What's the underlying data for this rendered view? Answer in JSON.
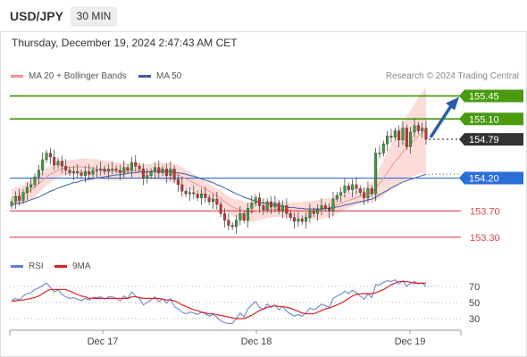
{
  "header": {
    "symbol": "USD/JPY",
    "interval": "30 MIN"
  },
  "datetime": "Thursday, December 19, 2024 2:47:43 AM CET",
  "legend": {
    "ma20": "MA 20 + Bollinger Bands",
    "ma50": "MA 50",
    "ma20_color": "#f4938f",
    "ma50_color": "#3a5fa8",
    "copyright": "Research © 2024 Trading Central"
  },
  "rsi_legend": {
    "rsi": "RSI",
    "ma9": "9MA",
    "rsi_color": "#5a7fd0",
    "ma9_color": "#e02020"
  },
  "levels": [
    {
      "value": 155.45,
      "label": "155.45",
      "kind": "target"
    },
    {
      "value": 155.1,
      "label": "155.10",
      "kind": "target"
    },
    {
      "value": 154.79,
      "label": "154.79",
      "kind": "current"
    },
    {
      "value": 154.2,
      "label": "154.20",
      "kind": "pivot"
    },
    {
      "value": 153.7,
      "label": "153.70",
      "kind": "support"
    },
    {
      "value": 153.3,
      "label": "153.30",
      "kind": "support"
    }
  ],
  "colors": {
    "target": "#4a9a10",
    "current": "#333333",
    "pivot": "#2a6ed8",
    "support": "#e0454d",
    "up": "#3aa030",
    "down": "#d03030",
    "arrow": "#2a5caa",
    "band": "#f9d0cc"
  },
  "rsi_levels": [
    "70",
    "50",
    "30"
  ],
  "x_labels": [
    "Dec 17",
    "Dec 18",
    "Dec 19"
  ],
  "chart_data": {
    "type": "candlestick",
    "ylim": [
      153.08,
      155.62
    ],
    "rsi_ylim": [
      20,
      82
    ],
    "closes": [
      153.84,
      153.92,
      153.86,
      153.98,
      154.06,
      154.1,
      154.22,
      154.32,
      154.48,
      154.58,
      154.52,
      154.4,
      154.46,
      154.38,
      154.32,
      154.28,
      154.3,
      154.28,
      154.24,
      154.3,
      154.26,
      154.32,
      154.32,
      154.34,
      154.3,
      154.34,
      154.34,
      154.32,
      154.28,
      154.36,
      154.32,
      154.44,
      154.38,
      154.34,
      154.2,
      154.24,
      154.3,
      154.36,
      154.28,
      154.34,
      154.24,
      154.34,
      154.18,
      154.1,
      154.0,
      153.96,
      153.98,
      153.96,
      153.9,
      153.96,
      153.9,
      153.84,
      153.88,
      153.8,
      153.66,
      153.56,
      153.48,
      153.46,
      153.56,
      153.66,
      153.56,
      153.74,
      153.82,
      153.9,
      153.78,
      153.72,
      153.84,
      153.76,
      153.82,
      153.7,
      153.78,
      153.66,
      153.6,
      153.54,
      153.58,
      153.54,
      153.6,
      153.7,
      153.66,
      153.72,
      153.78,
      153.74,
      153.7,
      153.88,
      153.94,
      153.98,
      154.08,
      154.02,
      154.1,
      154.04,
      153.98,
      153.9,
      154.04,
      153.96,
      154.58,
      154.58,
      154.72,
      154.84,
      154.82,
      154.92,
      154.78,
      154.96,
      154.68,
      154.9,
      155.0,
      154.92,
      154.96,
      154.79
    ],
    "ma20": [
      153.9,
      153.92,
      153.93,
      153.95,
      153.98,
      154.02,
      154.06,
      154.11,
      154.17,
      154.22,
      154.26,
      154.29,
      154.32,
      154.34,
      154.36,
      154.36,
      154.37,
      154.37,
      154.37,
      154.37,
      154.36,
      154.35,
      154.34,
      154.33,
      154.32,
      154.31,
      154.31,
      154.3,
      154.3,
      154.3,
      154.3,
      154.31,
      154.31,
      154.31,
      154.3,
      154.3,
      154.3,
      154.31,
      154.3,
      154.3,
      154.29,
      154.29,
      154.27,
      154.25,
      154.22,
      154.19,
      154.16,
      154.13,
      154.1,
      154.07,
      154.04,
      154.0,
      153.97,
      153.93,
      153.89,
      153.84,
      153.8,
      153.76,
      153.74,
      153.72,
      153.69,
      153.68,
      153.68,
      153.69,
      153.7,
      153.71,
      153.72,
      153.72,
      153.73,
      153.72,
      153.72,
      153.72,
      153.71,
      153.71,
      153.71,
      153.71,
      153.71,
      153.71,
      153.71,
      153.72,
      153.73,
      153.74,
      153.75,
      153.77,
      153.79,
      153.81,
      153.84,
      153.86,
      153.88,
      153.9,
      153.92,
      153.94,
      153.96,
      153.98,
      154.05,
      154.12,
      154.2,
      154.29,
      154.37,
      154.45,
      154.52,
      154.6,
      154.66,
      154.72,
      154.78,
      154.84,
      154.89,
      154.93
    ],
    "ma50": [
      153.8,
      153.81,
      153.82,
      153.83,
      153.85,
      153.87,
      153.89,
      153.91,
      153.94,
      153.97,
      154.0,
      154.02,
      154.05,
      154.07,
      154.09,
      154.11,
      154.13,
      154.14,
      154.16,
      154.17,
      154.18,
      154.19,
      154.2,
      154.21,
      154.22,
      154.23,
      154.24,
      154.25,
      154.25,
      154.26,
      154.27,
      154.28,
      154.28,
      154.29,
      154.29,
      154.29,
      154.3,
      154.3,
      154.3,
      154.3,
      154.3,
      154.3,
      154.29,
      154.28,
      154.27,
      154.26,
      154.24,
      154.23,
      154.21,
      154.19,
      154.17,
      154.15,
      154.13,
      154.1,
      154.08,
      154.05,
      154.02,
      153.99,
      153.96,
      153.94,
      153.91,
      153.89,
      153.87,
      153.85,
      153.84,
      153.82,
      153.81,
      153.8,
      153.79,
      153.78,
      153.77,
      153.76,
      153.75,
      153.75,
      153.74,
      153.74,
      153.73,
      153.73,
      153.73,
      153.73,
      153.73,
      153.74,
      153.74,
      153.75,
      153.76,
      153.77,
      153.79,
      153.8,
      153.81,
      153.83,
      153.84,
      153.85,
      153.87,
      153.88,
      153.91,
      153.95,
      153.98,
      154.01,
      154.05,
      154.08,
      154.11,
      154.14,
      154.16,
      154.18,
      154.2,
      154.22,
      154.24,
      154.26
    ],
    "rsi": [
      52,
      55,
      53,
      58,
      61,
      62,
      66,
      68,
      71,
      74,
      69,
      63,
      66,
      60,
      57,
      55,
      56,
      54,
      52,
      55,
      53,
      56,
      56,
      57,
      54,
      57,
      57,
      55,
      52,
      58,
      55,
      63,
      58,
      55,
      47,
      50,
      53,
      57,
      51,
      55,
      49,
      55,
      45,
      42,
      38,
      36,
      38,
      37,
      35,
      38,
      36,
      33,
      35,
      32,
      27,
      25,
      24,
      24,
      30,
      37,
      32,
      42,
      47,
      51,
      44,
      41,
      48,
      44,
      47,
      41,
      45,
      39,
      36,
      33,
      35,
      33,
      37,
      43,
      41,
      44,
      48,
      46,
      44,
      55,
      58,
      60,
      64,
      61,
      65,
      62,
      58,
      54,
      61,
      56,
      72,
      72,
      75,
      77,
      76,
      78,
      73,
      77,
      70,
      74,
      76,
      73,
      74,
      70
    ],
    "ma9": [
      52,
      52,
      53,
      53,
      54,
      55,
      56,
      58,
      61,
      64,
      66,
      66,
      66,
      66,
      66,
      64,
      62,
      60,
      58,
      57,
      55,
      55,
      55,
      55,
      55,
      55,
      55,
      55,
      55,
      55,
      55,
      57,
      57,
      56,
      55,
      55,
      55,
      55,
      55,
      54,
      53,
      53,
      52,
      50,
      47,
      45,
      43,
      41,
      40,
      38,
      37,
      36,
      36,
      35,
      34,
      33,
      32,
      31,
      30,
      30,
      30,
      32,
      34,
      37,
      40,
      42,
      44,
      45,
      46,
      45,
      45,
      44,
      43,
      41,
      39,
      37,
      36,
      36,
      36,
      38,
      40,
      42,
      43,
      45,
      47,
      49,
      52,
      55,
      58,
      60,
      61,
      61,
      61,
      61,
      62,
      64,
      66,
      69,
      72,
      74,
      76,
      76,
      76,
      75,
      74,
      74,
      74,
      74
    ]
  }
}
